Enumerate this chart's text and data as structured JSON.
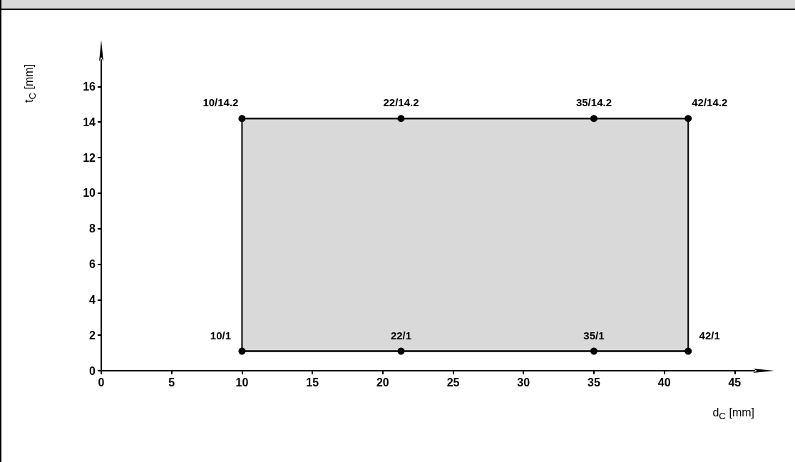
{
  "chart_data": {
    "type": "line",
    "xlabel": "d$_{C}$ [mm]",
    "ylabel": "t$_{C}$ [mm]",
    "xlim": [
      0,
      46.4
    ],
    "xticks": [
      0,
      5,
      10,
      15,
      20,
      25,
      30,
      35,
      40,
      45
    ],
    "ylim": [
      0,
      17.5
    ],
    "yticks": [
      0,
      2,
      4,
      6,
      8,
      10,
      12,
      14,
      16
    ],
    "grid": false,
    "marker": "circle",
    "line_style": "solid",
    "series": [
      {
        "color": "#000000",
        "x": [
          10,
          21.3,
          35,
          41.7
        ],
        "values": [
          14.2,
          14.2,
          14.2,
          14.2
        ],
        "lower": [
          1.1,
          1.1,
          1.1,
          1.1
        ],
        "upper": [
          14.2,
          14.2,
          14.2,
          14.2
        ],
        "value_labels": [
          "10/14.2",
          "22/14.2",
          "35/14.2",
          "42/14.2"
        ]
      },
      {
        "color": "#000000",
        "x": [
          10,
          21.3,
          35,
          41.7
        ],
        "values": [
          1.1,
          1.1,
          1.1,
          1.1
        ],
        "value_labels": [
          "10/1",
          "22/1",
          "35/1",
          "42/1"
        ]
      }
    ]
  }
}
